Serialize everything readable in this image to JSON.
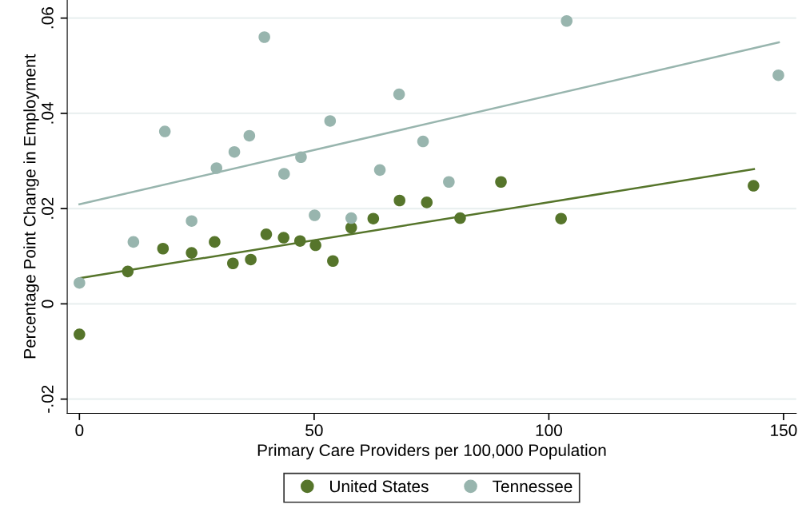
{
  "chart_data": {
    "type": "scatter",
    "xlabel": "Primary Care Providers per 100,000 Population",
    "ylabel": "Percentage Point Change in Employment",
    "xlim": [
      -2.6,
      152.7
    ],
    "xticks": [
      0,
      50,
      100,
      150
    ],
    "ylim": [
      -0.023,
      0.0638
    ],
    "yticks": [
      {
        "value": -0.02,
        "label": "-.02"
      },
      0,
      {
        "value": 0.02,
        "label": ".02"
      },
      {
        "value": 0.04,
        "label": ".04"
      },
      {
        "value": 0.06,
        "label": ".06"
      }
    ],
    "grid": "y",
    "legend": "bottom",
    "series": [
      {
        "name": "United States",
        "color": "#56752b",
        "marker": "circle",
        "x": [
          0,
          10.3,
          17.8,
          23.9,
          28.8,
          32.7,
          36.5,
          39.8,
          43.5,
          47.0,
          50.3,
          54.0,
          57.9,
          62.6,
          68.2,
          74.0,
          81.1,
          89.8,
          102.6,
          143.6
        ],
        "values": [
          -0.0064,
          0.0068,
          0.0116,
          0.0107,
          0.013,
          0.0085,
          0.0093,
          0.0146,
          0.0139,
          0.0132,
          0.0123,
          0.009,
          0.016,
          0.0179,
          0.0217,
          0.0213,
          0.018,
          0.0256,
          0.0179,
          0.0248
        ]
      },
      {
        "name": "Tennessee",
        "color": "#98b5ae",
        "marker": "circle",
        "x": [
          0,
          11.5,
          18.2,
          23.9,
          29.2,
          33.0,
          36.2,
          39.4,
          43.6,
          47.2,
          50.1,
          53.4,
          57.9,
          64.0,
          68.1,
          73.2,
          78.7,
          103.8,
          148.9
        ],
        "values": [
          0.0044,
          0.013,
          0.0362,
          0.0174,
          0.0285,
          0.0319,
          0.0353,
          0.056,
          0.0273,
          0.0308,
          0.0186,
          0.0384,
          0.018,
          0.0281,
          0.044,
          0.0341,
          0.0256,
          0.0594,
          0.048
        ]
      },
      {
        "type": "line",
        "color": "#56752b",
        "marker": "none",
        "x": [
          0,
          143.7
        ],
        "values": [
          0.0054,
          0.0283
        ]
      },
      {
        "type": "line",
        "color": "#98b5ae",
        "marker": "none",
        "x": [
          0,
          149
        ],
        "values": [
          0.0209,
          0.0549
        ]
      }
    ]
  }
}
